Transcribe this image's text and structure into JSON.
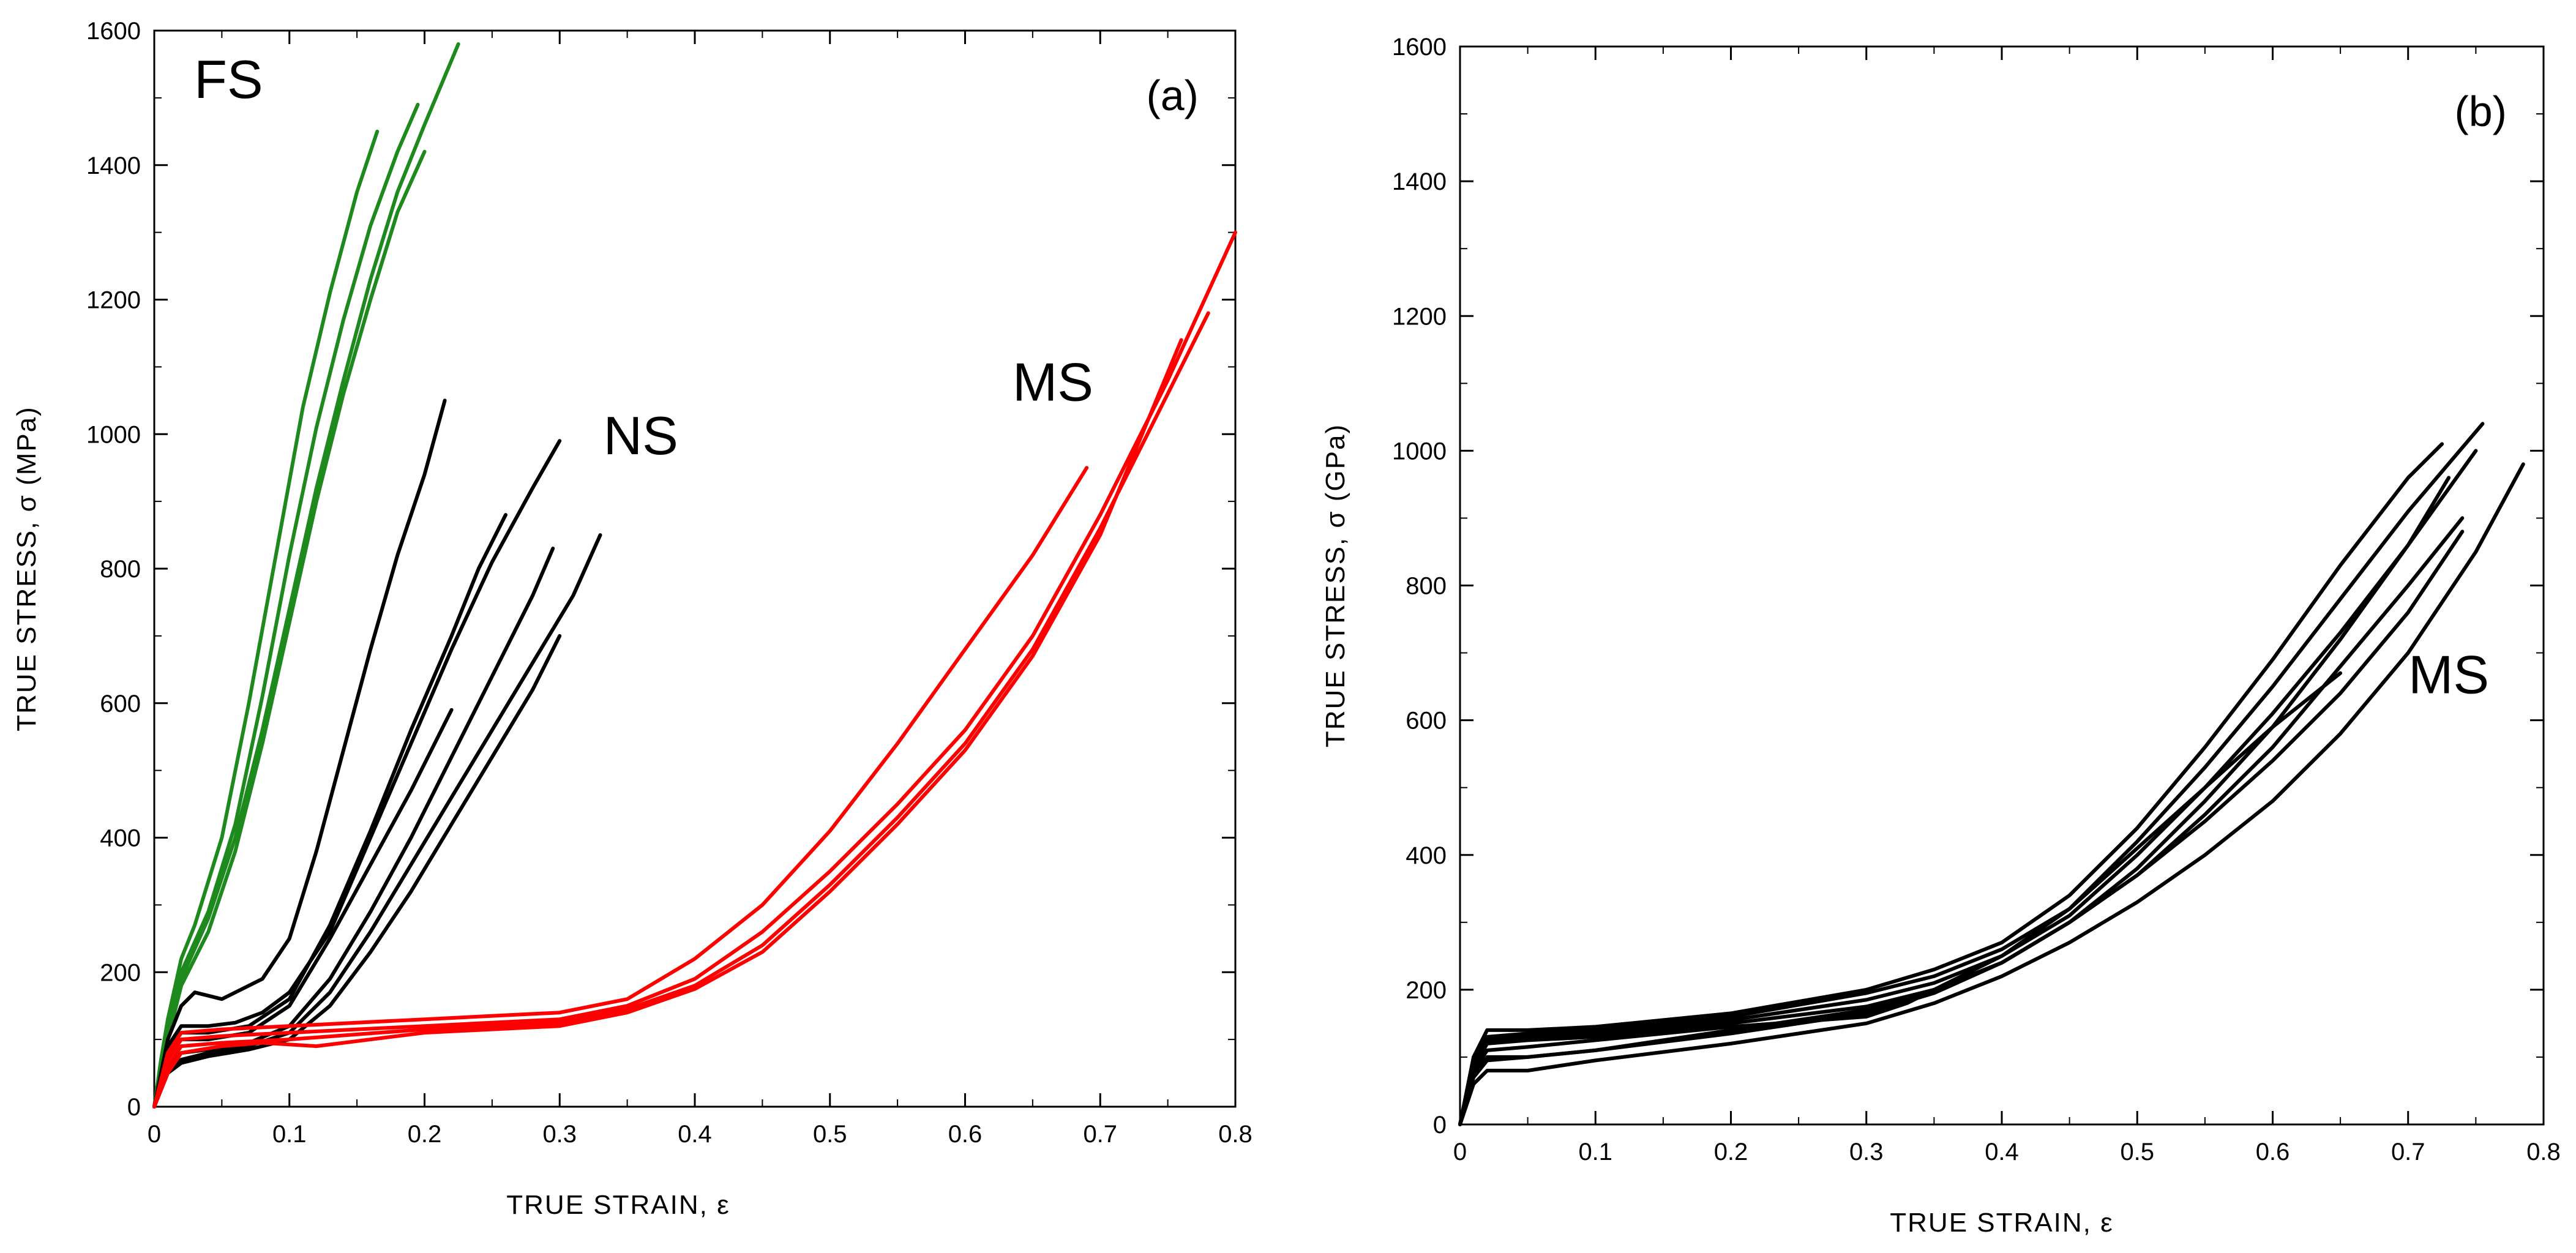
{
  "chart_data": [
    {
      "type": "line",
      "panel_label": "(a)",
      "xlabel": "TRUE STRAIN, ε",
      "ylabel": "TRUE STRESS, σ (MPa)",
      "xlim": [
        0,
        0.8
      ],
      "ylim": [
        0,
        1600
      ],
      "xticks": [
        "0",
        "0.1",
        "0.2",
        "0.3",
        "0.4",
        "0.5",
        "0.6",
        "0.7",
        "0.8"
      ],
      "yticks": [
        "0",
        "200",
        "400",
        "600",
        "800",
        "1000",
        "1200",
        "1400",
        "1600"
      ],
      "groups": [
        {
          "name": "FS",
          "color": "#1e8a1e",
          "label_at": [
            0.055,
            1500
          ],
          "series": [
            {
              "x": [
                0,
                0.005,
                0.01,
                0.02,
                0.03,
                0.05,
                0.07,
                0.09,
                0.11,
                0.13,
                0.15,
                0.165
              ],
              "y": [
                0,
                70,
                130,
                220,
                270,
                400,
                600,
                820,
                1040,
                1210,
                1360,
                1450
              ]
            },
            {
              "x": [
                0,
                0.005,
                0.01,
                0.02,
                0.04,
                0.06,
                0.08,
                0.1,
                0.12,
                0.14,
                0.16,
                0.18,
                0.195
              ],
              "y": [
                0,
                60,
                120,
                200,
                290,
                420,
                610,
                820,
                1010,
                1170,
                1310,
                1420,
                1490
              ]
            },
            {
              "x": [
                0,
                0.005,
                0.01,
                0.02,
                0.04,
                0.06,
                0.08,
                0.1,
                0.12,
                0.14,
                0.16,
                0.18,
                0.2,
                0.225
              ],
              "y": [
                0,
                55,
                110,
                190,
                280,
                400,
                560,
                740,
                920,
                1080,
                1230,
                1360,
                1460,
                1580
              ]
            },
            {
              "x": [
                0,
                0.005,
                0.01,
                0.02,
                0.04,
                0.06,
                0.08,
                0.1,
                0.12,
                0.14,
                0.16,
                0.18,
                0.2
              ],
              "y": [
                0,
                50,
                100,
                180,
                260,
                380,
                540,
                720,
                900,
                1060,
                1200,
                1330,
                1420
              ]
            }
          ]
        },
        {
          "name": "NS",
          "color": "#000000",
          "label_at": [
            0.36,
            970
          ],
          "series": [
            {
              "x": [
                0,
                0.01,
                0.02,
                0.03,
                0.05,
                0.08,
                0.1,
                0.12,
                0.14,
                0.16,
                0.18,
                0.2,
                0.215
              ],
              "y": [
                0,
                100,
                150,
                170,
                160,
                190,
                250,
                380,
                530,
                680,
                820,
                940,
                1050
              ]
            },
            {
              "x": [
                0,
                0.01,
                0.02,
                0.04,
                0.06,
                0.08,
                0.1,
                0.13,
                0.16,
                0.19,
                0.22,
                0.25,
                0.28,
                0.3
              ],
              "y": [
                0,
                90,
                120,
                120,
                125,
                140,
                170,
                260,
                400,
                540,
                680,
                810,
                920,
                990
              ]
            },
            {
              "x": [
                0,
                0.01,
                0.02,
                0.04,
                0.07,
                0.1,
                0.13,
                0.16,
                0.19,
                0.22,
                0.24,
                0.26
              ],
              "y": [
                0,
                80,
                110,
                110,
                120,
                160,
                270,
                410,
                560,
                700,
                800,
                880
              ]
            },
            {
              "x": [
                0,
                0.01,
                0.02,
                0.04,
                0.07,
                0.1,
                0.13,
                0.16,
                0.19,
                0.22
              ],
              "y": [
                0,
                70,
                100,
                100,
                110,
                150,
                250,
                360,
                470,
                590
              ]
            },
            {
              "x": [
                0,
                0.01,
                0.02,
                0.04,
                0.07,
                0.1,
                0.13,
                0.16,
                0.19,
                0.22,
                0.25,
                0.28,
                0.295
              ],
              "y": [
                0,
                60,
                80,
                85,
                95,
                120,
                190,
                290,
                400,
                520,
                640,
                760,
                830
              ]
            },
            {
              "x": [
                0,
                0.01,
                0.02,
                0.04,
                0.07,
                0.1,
                0.13,
                0.16,
                0.19,
                0.22,
                0.25,
                0.28,
                0.31,
                0.33
              ],
              "y": [
                0,
                55,
                70,
                80,
                90,
                110,
                170,
                260,
                360,
                460,
                560,
                660,
                760,
                850
              ]
            },
            {
              "x": [
                0,
                0.01,
                0.02,
                0.04,
                0.07,
                0.1,
                0.13,
                0.16,
                0.19,
                0.22,
                0.25,
                0.28,
                0.3
              ],
              "y": [
                0,
                50,
                65,
                75,
                85,
                100,
                150,
                230,
                320,
                420,
                520,
                620,
                700
              ]
            }
          ]
        },
        {
          "name": "MS",
          "color": "#ff0000",
          "label_at": [
            0.665,
            1050
          ],
          "series": [
            {
              "x": [
                0,
                0.01,
                0.02,
                0.05,
                0.1,
                0.2,
                0.3,
                0.35,
                0.4,
                0.45,
                0.5,
                0.55,
                0.6,
                0.65,
                0.69
              ],
              "y": [
                0,
                80,
                110,
                115,
                120,
                130,
                140,
                160,
                220,
                300,
                410,
                540,
                680,
                820,
                950
              ]
            },
            {
              "x": [
                0,
                0.01,
                0.02,
                0.05,
                0.1,
                0.2,
                0.3,
                0.35,
                0.4,
                0.45,
                0.5,
                0.55,
                0.6,
                0.65,
                0.7,
                0.75,
                0.8
              ],
              "y": [
                0,
                70,
                100,
                105,
                110,
                120,
                130,
                150,
                190,
                260,
                350,
                450,
                560,
                700,
                880,
                1080,
                1300
              ]
            },
            {
              "x": [
                0,
                0.01,
                0.02,
                0.05,
                0.1,
                0.2,
                0.3,
                0.35,
                0.4,
                0.45,
                0.5,
                0.55,
                0.6,
                0.65,
                0.7,
                0.75,
                0.78
              ],
              "y": [
                0,
                60,
                90,
                95,
                100,
                115,
                125,
                145,
                180,
                240,
                330,
                430,
                540,
                680,
                860,
                1060,
                1180
              ]
            },
            {
              "x": [
                0,
                0.01,
                0.02,
                0.05,
                0.08,
                0.12,
                0.2,
                0.3,
                0.35,
                0.4,
                0.45,
                0.5,
                0.55,
                0.6,
                0.65,
                0.7,
                0.76
              ],
              "y": [
                0,
                50,
                80,
                90,
                95,
                90,
                110,
                120,
                140,
                175,
                230,
                320,
                420,
                530,
                670,
                850,
                1140
              ]
            }
          ]
        }
      ]
    },
    {
      "type": "line",
      "panel_label": "(b)",
      "xlabel": "TRUE STRAIN, ε",
      "ylabel": "TRUE STRESS, σ (GPa)",
      "xlim": [
        0,
        0.8
      ],
      "ylim": [
        0,
        1600
      ],
      "xticks": [
        "0",
        "0.1",
        "0.2",
        "0.3",
        "0.4",
        "0.5",
        "0.6",
        "0.7",
        "0.8"
      ],
      "yticks": [
        "0",
        "200",
        "400",
        "600",
        "800",
        "1000",
        "1200",
        "1400",
        "1600"
      ],
      "groups": [
        {
          "name": "MS",
          "color": "#000000",
          "label_at": [
            0.73,
            640
          ],
          "series": [
            {
              "x": [
                0,
                0.01,
                0.02,
                0.05,
                0.1,
                0.2,
                0.3,
                0.35,
                0.4,
                0.45,
                0.5,
                0.55,
                0.6,
                0.65,
                0.7,
                0.725
              ],
              "y": [
                0,
                100,
                140,
                140,
                145,
                165,
                200,
                230,
                270,
                340,
                440,
                560,
                690,
                830,
                960,
                1010
              ]
            },
            {
              "x": [
                0,
                0.01,
                0.02,
                0.05,
                0.1,
                0.2,
                0.3,
                0.35,
                0.4,
                0.45,
                0.5,
                0.55,
                0.6,
                0.65,
                0.7,
                0.755
              ],
              "y": [
                0,
                95,
                130,
                135,
                140,
                160,
                195,
                220,
                260,
                320,
                420,
                530,
                650,
                780,
                910,
                1040
              ]
            },
            {
              "x": [
                0,
                0.01,
                0.02,
                0.05,
                0.1,
                0.2,
                0.3,
                0.35,
                0.4,
                0.45,
                0.5,
                0.55,
                0.6,
                0.65,
                0.7,
                0.75
              ],
              "y": [
                0,
                90,
                125,
                130,
                135,
                155,
                185,
                210,
                250,
                310,
                400,
                500,
                610,
                730,
                860,
                1000
              ]
            },
            {
              "x": [
                0,
                0.01,
                0.02,
                0.05,
                0.1,
                0.2,
                0.3,
                0.35,
                0.4,
                0.45,
                0.5,
                0.55,
                0.6,
                0.65,
                0.7,
                0.73
              ],
              "y": [
                0,
                85,
                120,
                125,
                130,
                150,
                175,
                200,
                240,
                300,
                380,
                480,
                590,
                720,
                860,
                960
              ]
            },
            {
              "x": [
                0,
                0.01,
                0.02,
                0.05,
                0.1,
                0.2,
                0.3,
                0.33,
                0.35,
                0.4,
                0.45,
                0.5,
                0.55,
                0.6,
                0.65,
                0.7,
                0.74
              ],
              "y": [
                0,
                80,
                110,
                115,
                125,
                145,
                160,
                180,
                200,
                240,
                300,
                370,
                460,
                560,
                680,
                800,
                900
              ]
            },
            {
              "x": [
                0,
                0.01,
                0.02,
                0.05,
                0.1,
                0.2,
                0.3,
                0.35,
                0.4,
                0.45,
                0.5,
                0.55,
                0.6,
                0.65
              ],
              "y": [
                0,
                75,
                100,
                100,
                110,
                140,
                170,
                200,
                250,
                320,
                410,
                500,
                590,
                670
              ]
            },
            {
              "x": [
                0,
                0.01,
                0.02,
                0.05,
                0.1,
                0.2,
                0.3,
                0.35,
                0.4,
                0.45,
                0.5,
                0.55,
                0.6,
                0.65,
                0.7,
                0.75,
                0.785
              ],
              "y": [
                0,
                60,
                80,
                80,
                95,
                120,
                150,
                180,
                220,
                270,
                330,
                400,
                480,
                580,
                700,
                850,
                980
              ]
            },
            {
              "x": [
                0,
                0.01,
                0.02,
                0.05,
                0.1,
                0.2,
                0.3,
                0.35,
                0.4,
                0.45,
                0.5,
                0.55,
                0.6,
                0.65,
                0.7,
                0.74
              ],
              "y": [
                0,
                70,
                95,
                100,
                110,
                135,
                165,
                195,
                240,
                300,
                370,
                450,
                540,
                640,
                760,
                880
              ]
            }
          ]
        }
      ]
    }
  ]
}
